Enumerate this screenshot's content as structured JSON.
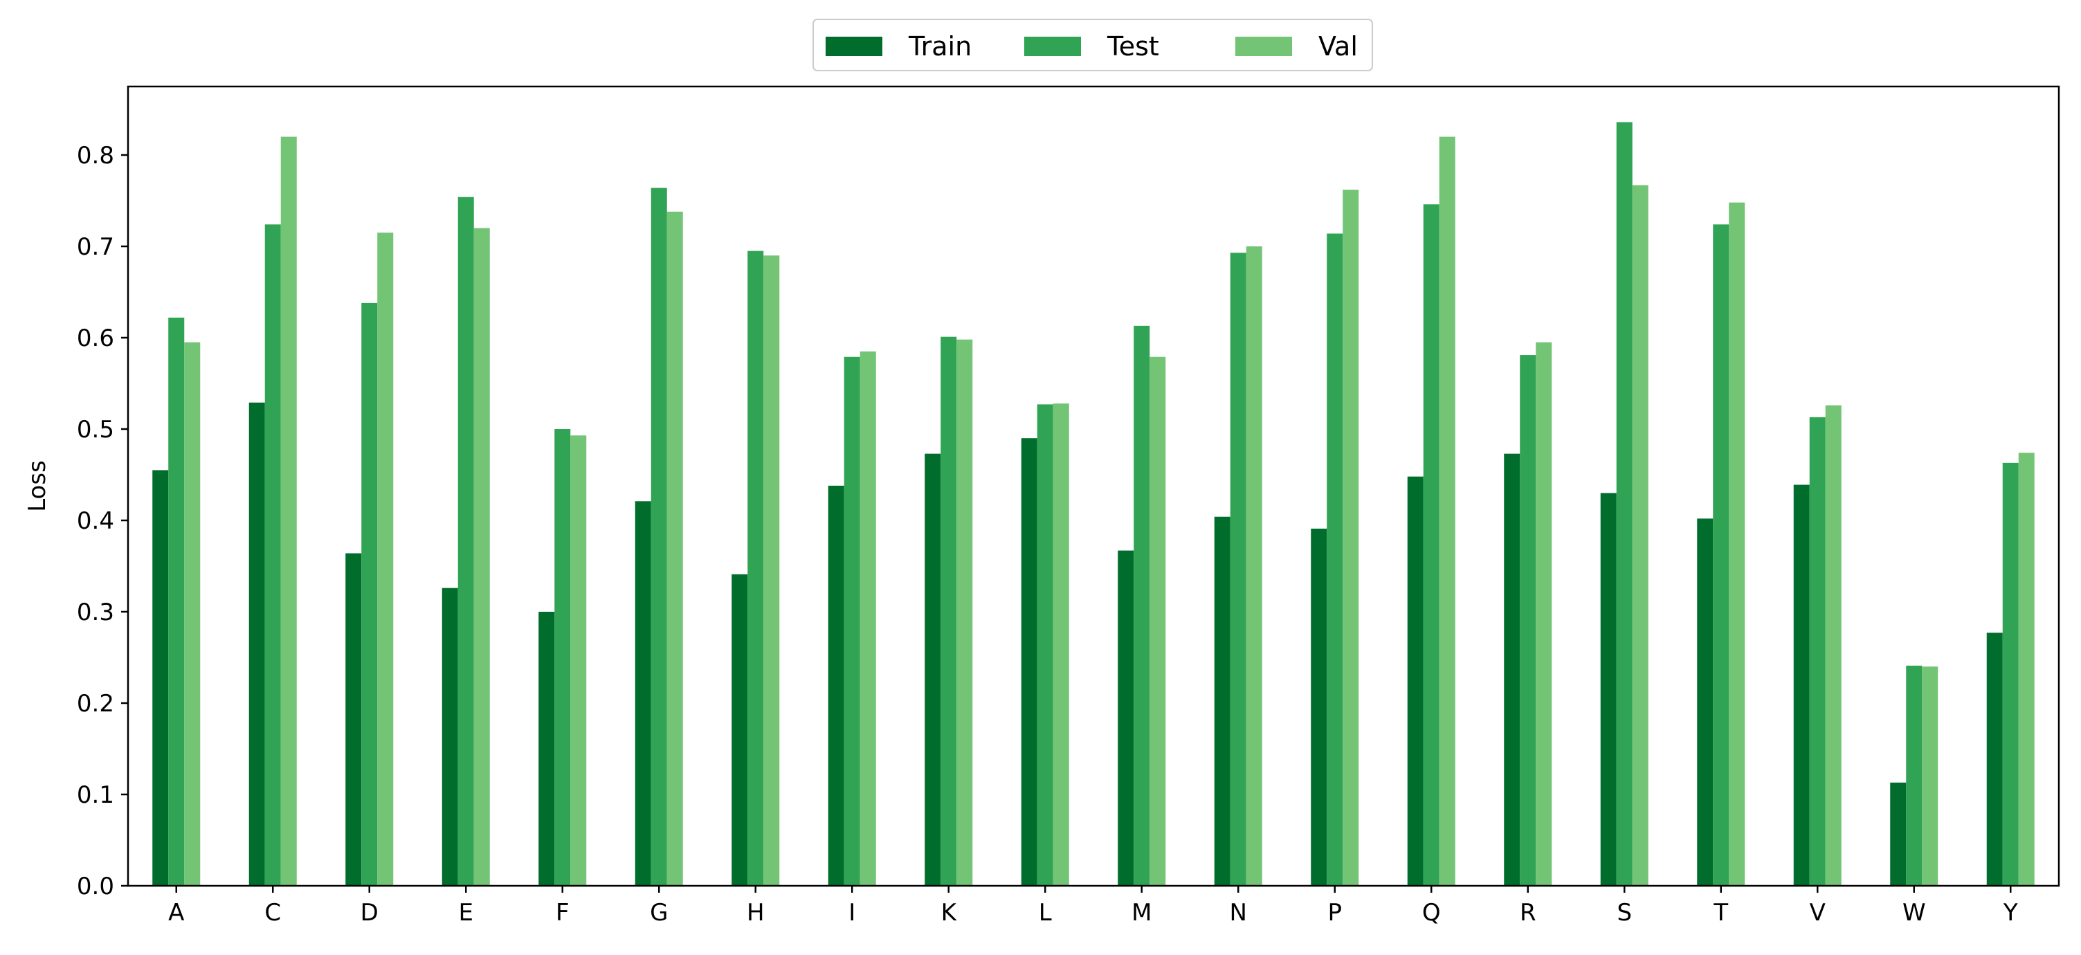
{
  "chart_data": {
    "type": "bar",
    "title": "",
    "xlabel": "",
    "ylabel": "Loss",
    "ylim": [
      0,
      0.875
    ],
    "yticks": [
      "0.0",
      "0.1",
      "0.2",
      "0.3",
      "0.4",
      "0.5",
      "0.6",
      "0.7",
      "0.8"
    ],
    "grid": false,
    "legend_position": "top-center",
    "categories": [
      "A",
      "C",
      "D",
      "E",
      "F",
      "G",
      "H",
      "I",
      "K",
      "L",
      "M",
      "N",
      "P",
      "Q",
      "R",
      "S",
      "T",
      "V",
      "W",
      "Y"
    ],
    "series": [
      {
        "name": "Train",
        "color": "#006d2c",
        "values": [
          0.455,
          0.529,
          0.364,
          0.326,
          0.3,
          0.421,
          0.341,
          0.438,
          0.473,
          0.49,
          0.367,
          0.404,
          0.391,
          0.448,
          0.473,
          0.43,
          0.402,
          0.439,
          0.113,
          0.277
        ]
      },
      {
        "name": "Test",
        "color": "#31a354",
        "values": [
          0.622,
          0.724,
          0.638,
          0.754,
          0.5,
          0.764,
          0.695,
          0.579,
          0.601,
          0.527,
          0.613,
          0.693,
          0.714,
          0.746,
          0.581,
          0.836,
          0.724,
          0.513,
          0.241,
          0.463
        ]
      },
      {
        "name": "Val",
        "color": "#74c476",
        "values": [
          0.595,
          0.82,
          0.715,
          0.72,
          0.493,
          0.738,
          0.69,
          0.585,
          0.598,
          0.528,
          0.579,
          0.7,
          0.762,
          0.82,
          0.595,
          0.767,
          0.748,
          0.526,
          0.24,
          0.474
        ]
      }
    ]
  }
}
